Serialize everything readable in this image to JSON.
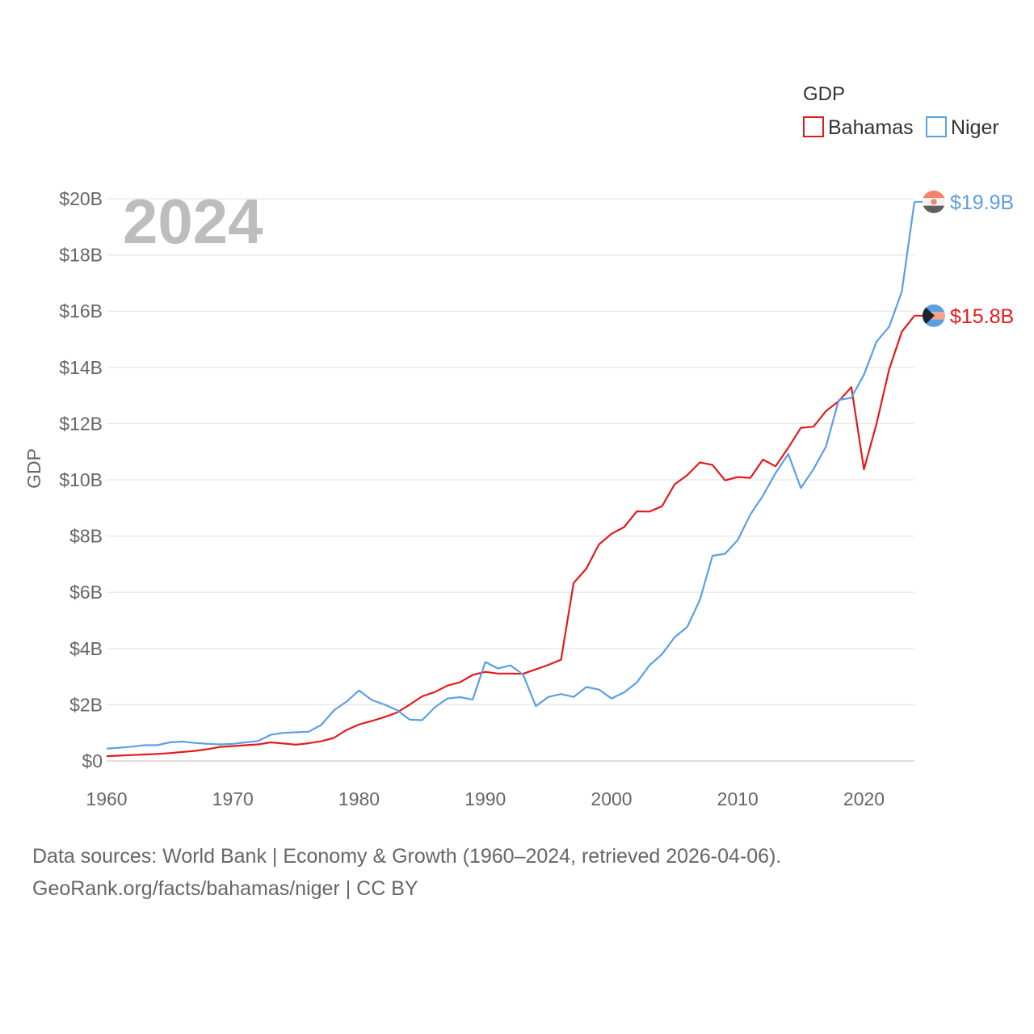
{
  "chart_data": {
    "type": "line",
    "title": "GDP",
    "year_label": "2024",
    "ylabel": "GDP",
    "xlabel": "",
    "xlim": [
      1960,
      2024
    ],
    "ylim": [
      0,
      20
    ],
    "x_ticks": [
      1960,
      1970,
      1980,
      1990,
      2000,
      2010,
      2020
    ],
    "x_tick_labels": [
      "1960",
      "1970",
      "1980",
      "1990",
      "2000",
      "2010",
      "2020"
    ],
    "y_ticks": [
      0,
      2,
      4,
      6,
      8,
      10,
      12,
      14,
      16,
      18,
      20
    ],
    "y_tick_labels": [
      "$0",
      "$2B",
      "$4B",
      "$6B",
      "$8B",
      "$10B",
      "$12B",
      "$14B",
      "$16B",
      "$18B",
      "$20B"
    ],
    "grid": true,
    "legend": {
      "title": "GDP",
      "position": "top-right"
    },
    "x": [
      1960,
      1961,
      1962,
      1963,
      1964,
      1965,
      1966,
      1967,
      1968,
      1969,
      1970,
      1971,
      1972,
      1973,
      1974,
      1975,
      1976,
      1977,
      1978,
      1979,
      1980,
      1981,
      1982,
      1983,
      1984,
      1985,
      1986,
      1987,
      1988,
      1989,
      1990,
      1991,
      1992,
      1993,
      1994,
      1995,
      1996,
      1997,
      1998,
      1999,
      2000,
      2001,
      2002,
      2003,
      2004,
      2005,
      2006,
      2007,
      2008,
      2009,
      2010,
      2011,
      2012,
      2013,
      2014,
      2015,
      2016,
      2017,
      2018,
      2019,
      2020,
      2021,
      2022,
      2023,
      2024
    ],
    "series": [
      {
        "name": "Bahamas",
        "color": "#e31a1c",
        "end_label": "$15.8B",
        "values": [
          0.17,
          0.19,
          0.21,
          0.23,
          0.25,
          0.28,
          0.32,
          0.36,
          0.42,
          0.5,
          0.53,
          0.56,
          0.59,
          0.66,
          0.62,
          0.58,
          0.63,
          0.7,
          0.82,
          1.1,
          1.3,
          1.42,
          1.56,
          1.72,
          2.0,
          2.3,
          2.45,
          2.68,
          2.8,
          3.06,
          3.17,
          3.11,
          3.11,
          3.1,
          3.26,
          3.42,
          3.6,
          6.33,
          6.84,
          7.7,
          8.08,
          8.32,
          8.88,
          8.87,
          9.06,
          9.84,
          10.17,
          10.62,
          10.53,
          9.98,
          10.1,
          10.07,
          10.72,
          10.48,
          11.14,
          11.85,
          11.89,
          12.45,
          12.8,
          13.3,
          10.37,
          12.0,
          13.94,
          15.27,
          15.84
        ]
      },
      {
        "name": "Niger",
        "color": "#5b9fe4",
        "end_label": "$19.9B",
        "values": [
          0.44,
          0.47,
          0.51,
          0.56,
          0.56,
          0.66,
          0.69,
          0.64,
          0.61,
          0.59,
          0.61,
          0.66,
          0.71,
          0.93,
          1.0,
          1.02,
          1.04,
          1.28,
          1.8,
          2.11,
          2.51,
          2.17,
          2.01,
          1.81,
          1.47,
          1.45,
          1.91,
          2.22,
          2.27,
          2.18,
          3.52,
          3.29,
          3.4,
          3.07,
          1.95,
          2.28,
          2.38,
          2.28,
          2.63,
          2.54,
          2.22,
          2.44,
          2.79,
          3.4,
          3.8,
          4.4,
          4.77,
          5.73,
          7.3,
          7.37,
          7.86,
          8.77,
          9.44,
          10.24,
          10.92,
          9.71,
          10.38,
          11.19,
          12.84,
          12.92,
          13.74,
          14.92,
          15.45,
          16.7,
          19.89
        ]
      }
    ],
    "source_line1": "Data sources: World Bank | Economy & Growth (1960–2024, retrieved 2026-04-06).",
    "source_line2": "GeoRank.org/facts/bahamas/niger | CC BY"
  }
}
